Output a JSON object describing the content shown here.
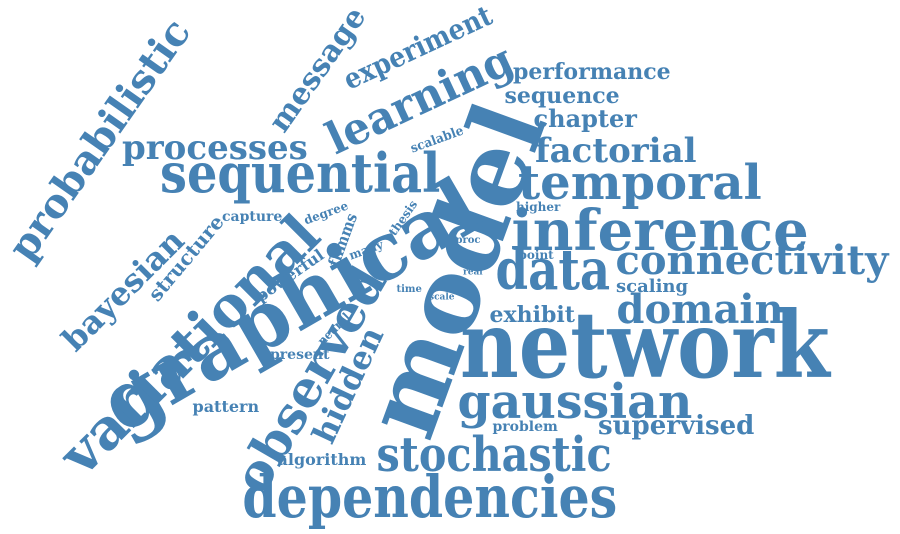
{
  "color": "#4682b4",
  "words": [
    "model",
    "network",
    "graphical",
    "dependencies",
    "inference",
    "sequential",
    "variational",
    "observed",
    "data",
    "temporal",
    "gaussian",
    "stochastic",
    "learning",
    "connectivity",
    "domain",
    "probabilistic",
    "bayesian",
    "processes",
    "factorial",
    "hidden",
    "message",
    "experiment",
    "supervised",
    "chapter",
    "performance",
    "sequence",
    "structure",
    "exhibit",
    "powerful",
    "fhmms",
    "pattern",
    "algorithm",
    "scaling",
    "present",
    "problem",
    "capture",
    "degree",
    "scalable",
    "higher",
    "point",
    "neural",
    "many",
    "thesis",
    "proc",
    "real",
    "time",
    "scale"
  ]
}
